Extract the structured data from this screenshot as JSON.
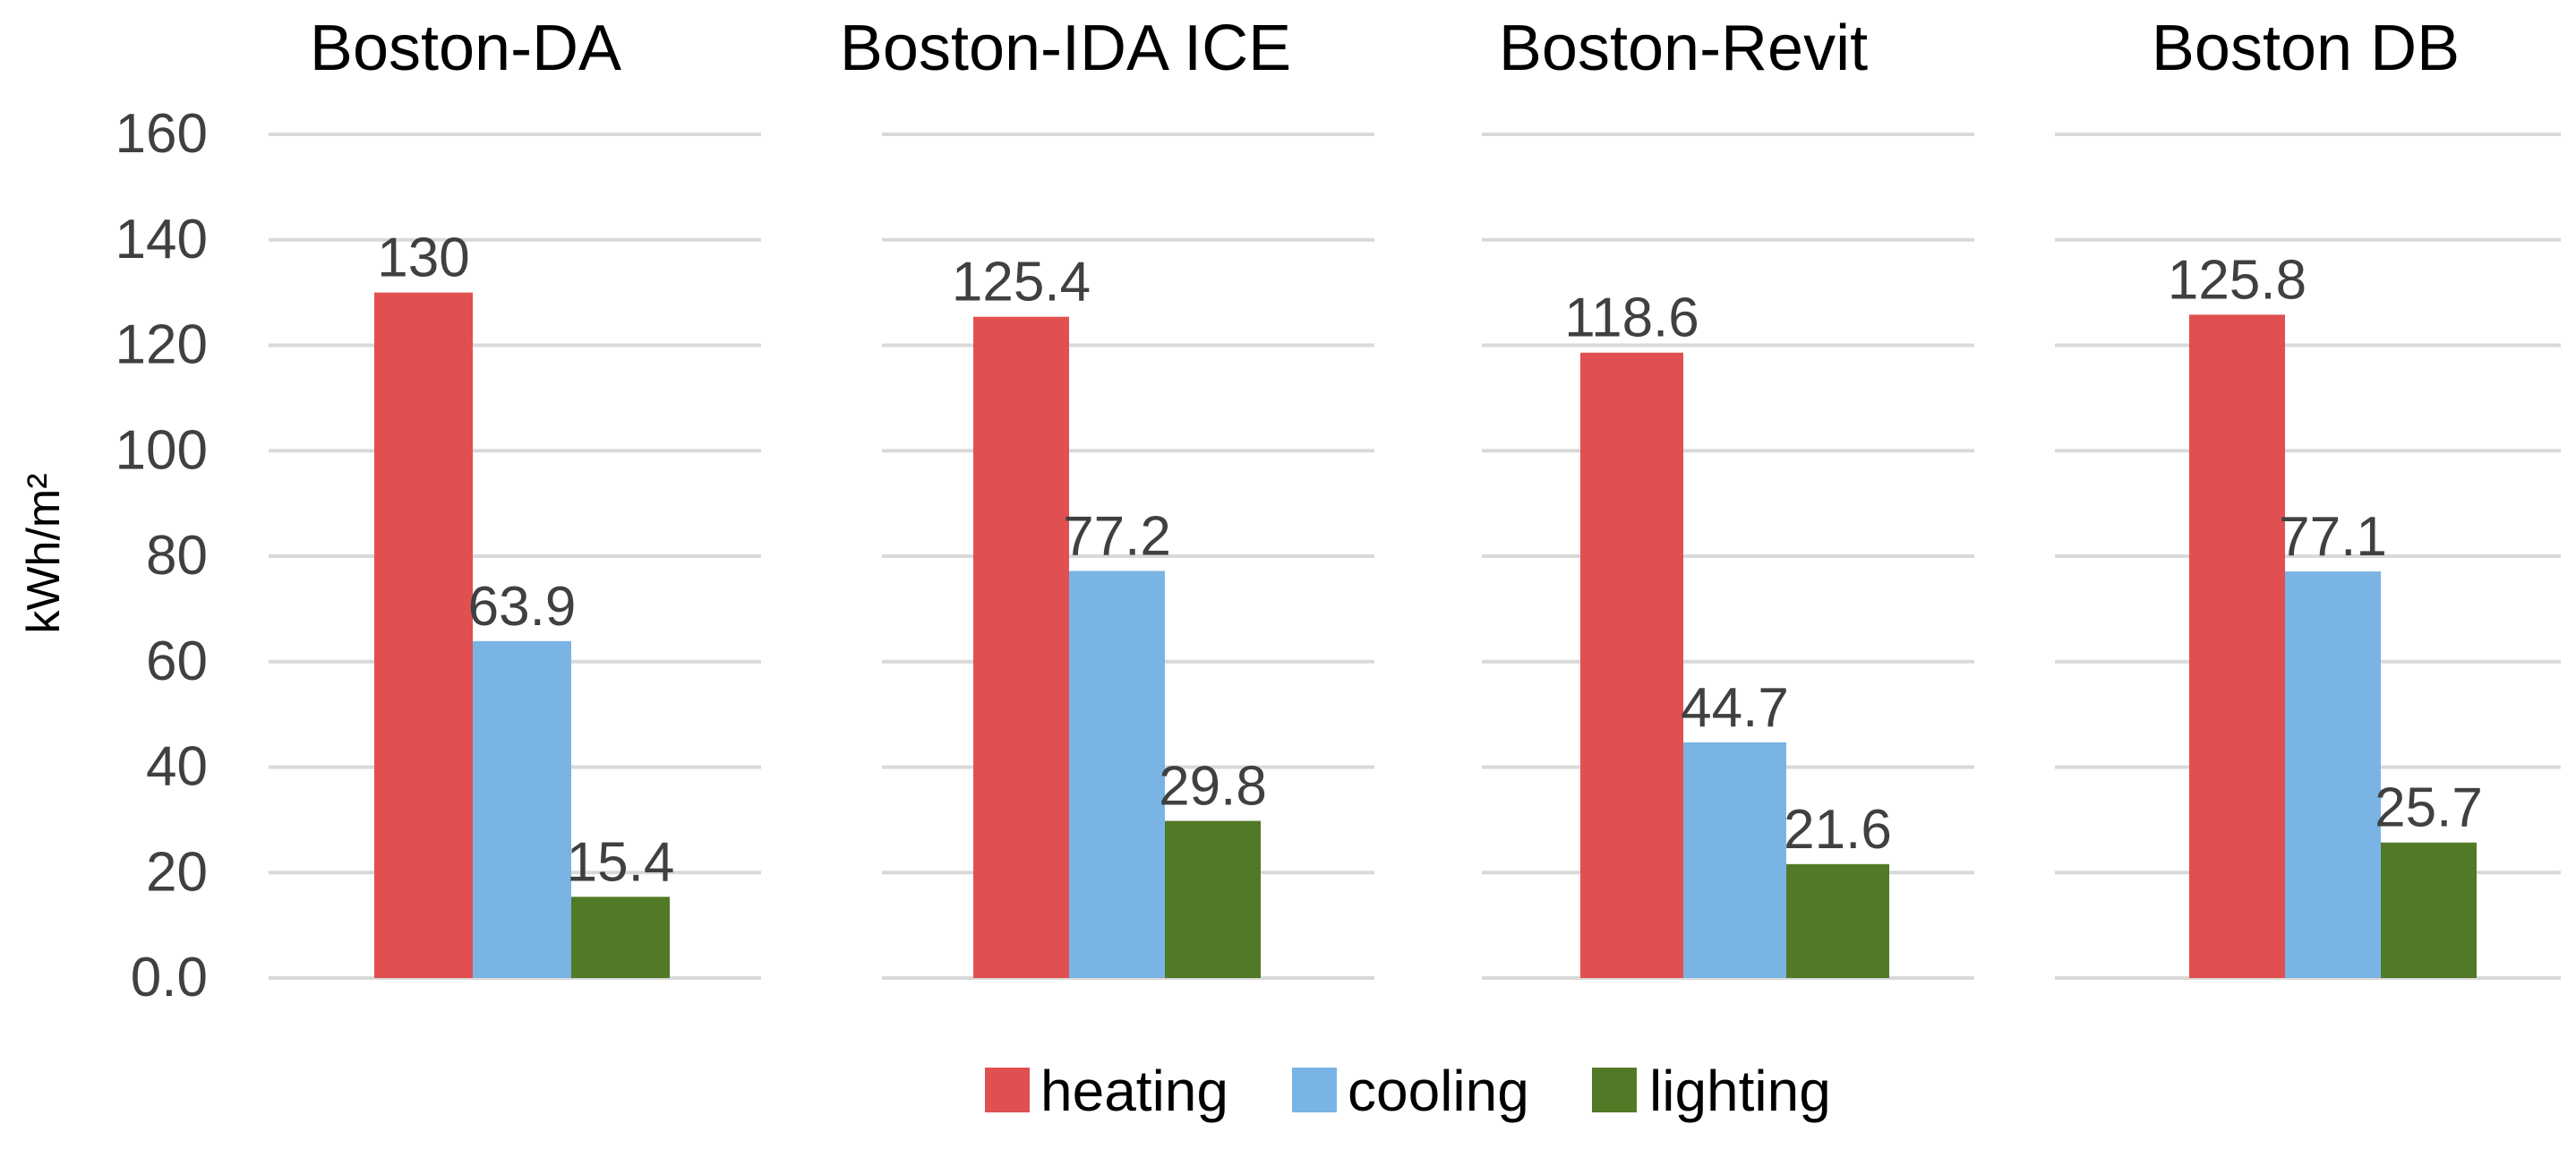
{
  "chart_data": {
    "type": "bar",
    "layout": "small-multiples",
    "ylabel": "kWh/m²",
    "ylim": [
      0,
      160
    ],
    "yticks": [
      0,
      20,
      40,
      60,
      80,
      100,
      120,
      140,
      160
    ],
    "ytick_labels": [
      "0.0",
      "20",
      "40",
      "60",
      "80",
      "100",
      "120",
      "140",
      "160"
    ],
    "grid": true,
    "legend_position": "bottom-center",
    "series": [
      {
        "name": "heating",
        "color": "#e05050"
      },
      {
        "name": "cooling",
        "color": "#7ab4e4"
      },
      {
        "name": "lighting",
        "color": "#527a26"
      }
    ],
    "panels": [
      {
        "title": "Boston-DA",
        "values": [
          130,
          63.9,
          15.4
        ],
        "labels": [
          "130",
          "63.9",
          "15.4"
        ]
      },
      {
        "title": "Boston-IDA ICE",
        "values": [
          125.4,
          77.2,
          29.8
        ],
        "labels": [
          "125.4",
          "77.2",
          "29.8"
        ]
      },
      {
        "title": "Boston-Revit",
        "values": [
          118.6,
          44.7,
          21.6
        ],
        "labels": [
          "118.6",
          "44.7",
          "21.6"
        ]
      },
      {
        "title": "Boston DB",
        "values": [
          125.8,
          77.1,
          25.7
        ],
        "labels": [
          "125.8",
          "77.1",
          "25.7"
        ]
      }
    ]
  }
}
